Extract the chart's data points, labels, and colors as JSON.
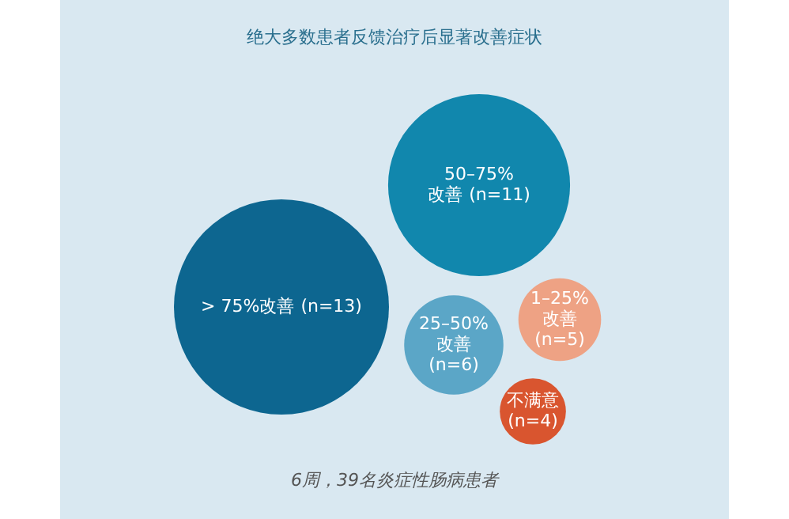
{
  "chart_data": {
    "type": "other",
    "title": "绝大多数患者反馈治疗后显著改善症状",
    "categories": [
      "> 75%改善",
      "50–75%\n改善",
      "25–50%\n改善",
      "1–25%\n改善",
      "不满意"
    ],
    "values": [
      13,
      11,
      6,
      5,
      4
    ],
    "value_labels": [
      "(n=13)",
      "(n=11)",
      "(n=6)",
      "(n=5)",
      "(n=4)"
    ],
    "colors": [
      "#0d6690",
      "#1187ad",
      "#5ba6c7",
      "#eea284",
      "#d9552f"
    ],
    "annotations": [
      "6周，39名炎症性肠病患者"
    ]
  }
}
